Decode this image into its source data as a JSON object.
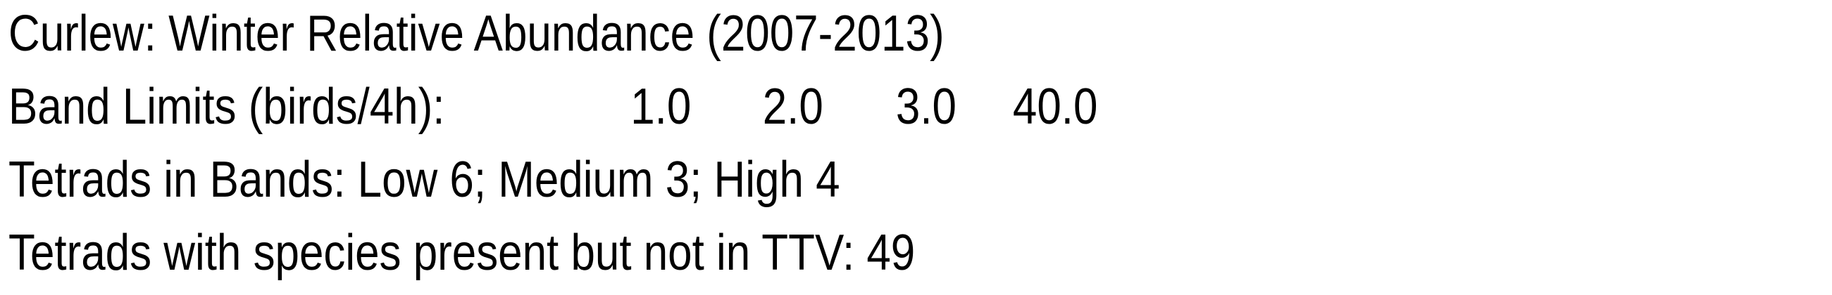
{
  "title": "Curlew: Winter Relative Abundance (2007-2013)",
  "band_limits": {
    "label": "Band Limits (birds/4h):",
    "values": [
      "1.0",
      "2.0",
      "3.0",
      "40.0"
    ]
  },
  "tetrads_in_bands": "Tetrads in Bands: Low 6; Medium 3; High 4",
  "tetrads_not_in_ttv": "Tetrads with species present but not in TTV: 49"
}
